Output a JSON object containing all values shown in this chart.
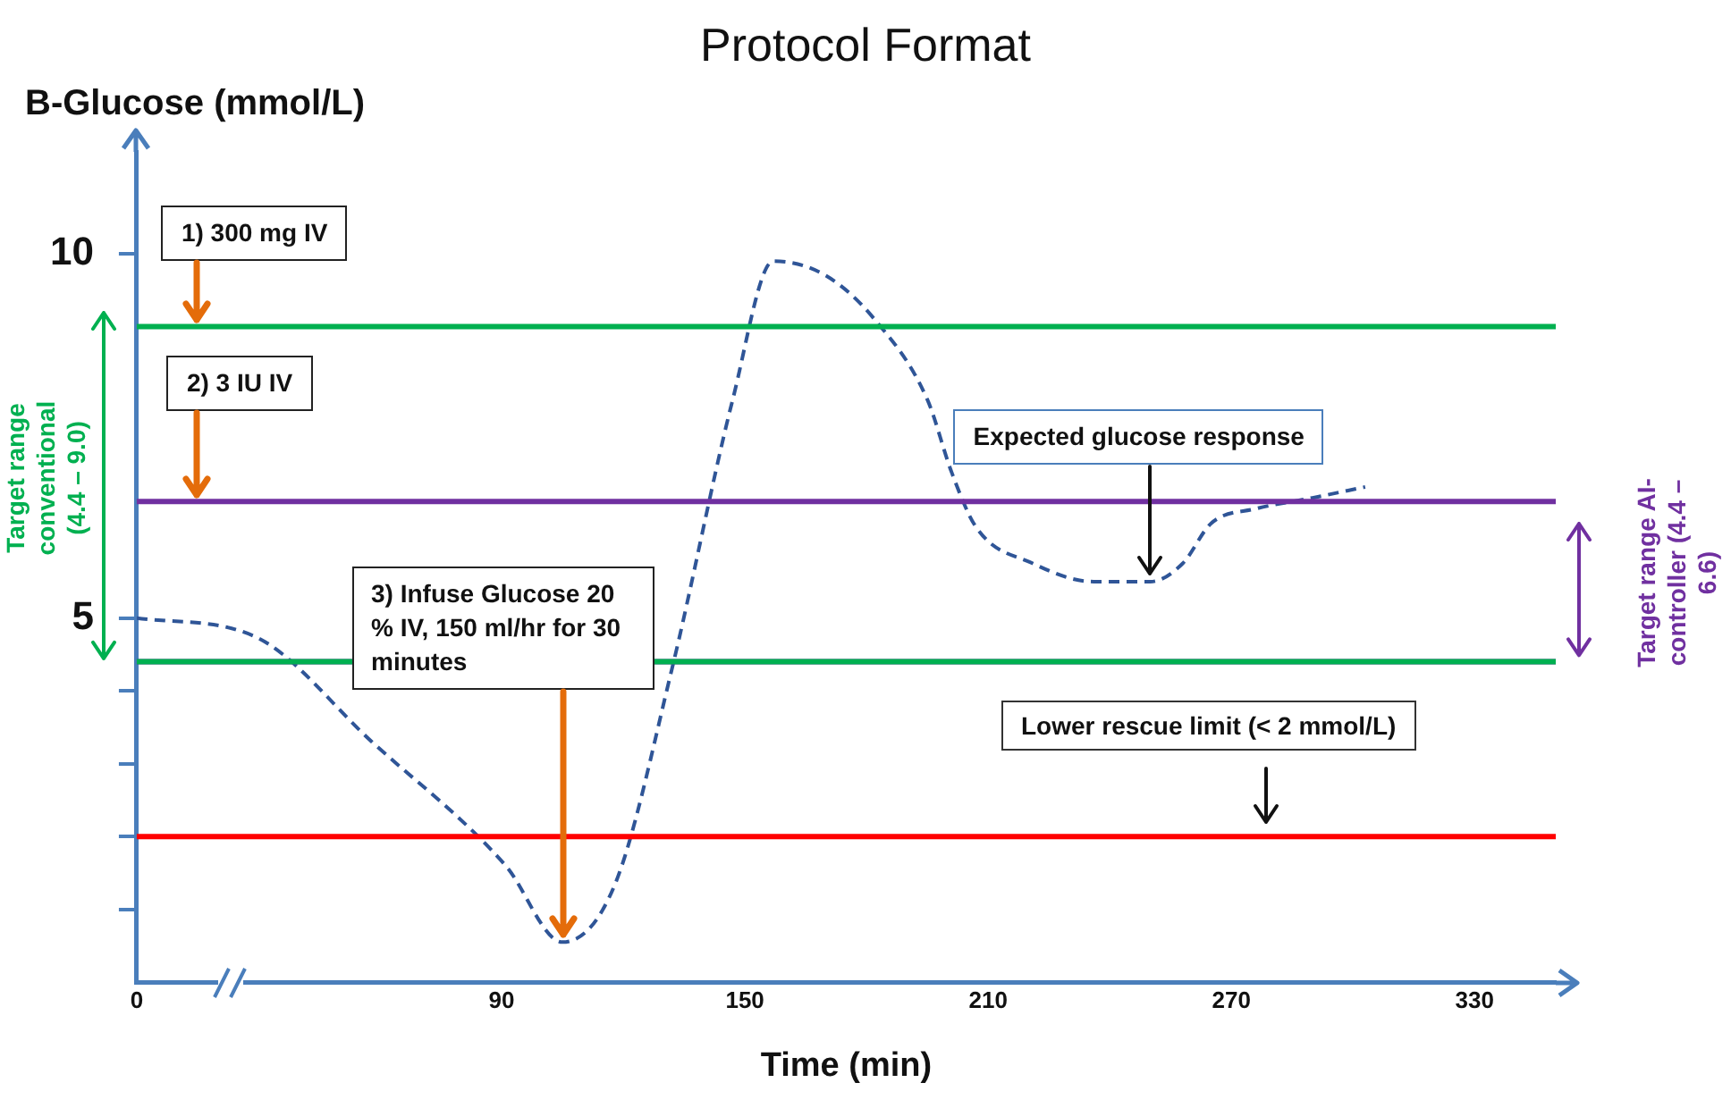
{
  "chart_data": {
    "type": "line",
    "title": "Protocol Format",
    "ylabel": "B-Glucose (mmol/L)",
    "xlabel": "Time (min)",
    "x": [
      0,
      29,
      58,
      91,
      105,
      118,
      132,
      147,
      157,
      170,
      182,
      195,
      201,
      207,
      221,
      236,
      250,
      258,
      265,
      276,
      290,
      303
    ],
    "series": [
      {
        "color": "#2f5597",
        "values": [
          5.0,
          4.75,
          3.3,
          1.6,
          0.55,
          1.35,
          4.3,
          8.0,
          9.9,
          9.7,
          9.1,
          8.0,
          7.0,
          6.25,
          5.75,
          5.5,
          5.5,
          5.75,
          6.3,
          6.5,
          6.65,
          6.8
        ]
      }
    ],
    "xlim": [
      0,
      350
    ],
    "xticks": [
      0,
      90,
      150,
      210,
      270,
      330
    ],
    "ylim": [
      0,
      11.4
    ],
    "yticks": [
      {
        "value": 1,
        "label": null
      },
      {
        "value": 2,
        "label": null
      },
      {
        "value": 3,
        "label": null
      },
      {
        "value": 4,
        "label": null
      },
      5,
      10
    ],
    "ref_lines": [
      {
        "axis": "y",
        "value": 9.0,
        "color": "#00b050"
      },
      {
        "axis": "y",
        "value": 6.6,
        "color": "#7030a0"
      },
      {
        "axis": "y",
        "value": 4.4,
        "color": "#7030a0"
      },
      {
        "axis": "y",
        "value": 4.4,
        "color": "#00b050"
      },
      {
        "axis": "y",
        "value": 2,
        "color": "#ff0000",
        "label": "Lower rescue limit (< 2 mmol/L)"
      }
    ],
    "annotations": [
      {
        "text": "1) 300 mg IV",
        "x": 15,
        "y": 9.0
      },
      {
        "text": "2) 3 IU IV",
        "x": 15,
        "y": 6.6
      },
      {
        "text": "3) Infuse Glucose 20 % IV, 150 ml/hr for 30 minutes",
        "x": 105,
        "y": 0.55
      },
      "Target range conventional (4.4 – 9.0)",
      {
        "text": "Expected glucose response",
        "x": 250,
        "y": 5.5
      },
      "Target range AI-controller (4.4 – 6.6)"
    ],
    "grid": false,
    "legend": false,
    "marker": "none",
    "line_style": "dashed"
  }
}
